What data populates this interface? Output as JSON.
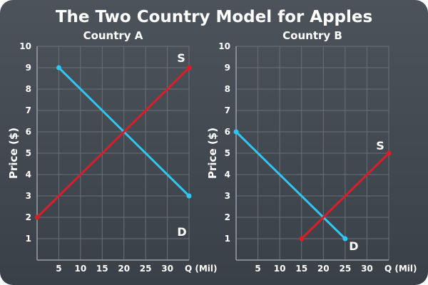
{
  "title": "The Two Country Model for Apples",
  "colors": {
    "demand": "#30c6f2",
    "supply": "#d91e2a",
    "background": "#3f454c",
    "text": "#ffffff"
  },
  "chart_data": [
    {
      "type": "line",
      "title": "Country A",
      "xlabel": "Q (Mil)",
      "ylabel": "Price ($)",
      "xlim": [
        0,
        35
      ],
      "ylim": [
        0,
        10
      ],
      "x_ticks": [
        "5",
        "10",
        "15",
        "20",
        "25",
        "30"
      ],
      "y_ticks": [
        "1",
        "2",
        "3",
        "4",
        "5",
        "6",
        "7",
        "8",
        "9",
        "10"
      ],
      "grid": true,
      "series": [
        {
          "name": "D",
          "role": "demand",
          "points": [
            [
              5,
              9
            ],
            [
              35,
              3
            ]
          ]
        },
        {
          "name": "S",
          "role": "supply",
          "points": [
            [
              0,
              2
            ],
            [
              35,
              9
            ]
          ]
        }
      ]
    },
    {
      "type": "line",
      "title": "Country B",
      "xlabel": "Q (Mil)",
      "ylabel": "Price ($)",
      "xlim": [
        0,
        35
      ],
      "ylim": [
        0,
        10
      ],
      "x_ticks": [
        "5",
        "10",
        "15",
        "20",
        "25",
        "30"
      ],
      "y_ticks": [
        "1",
        "2",
        "3",
        "4",
        "5",
        "6",
        "7",
        "8",
        "9",
        "10"
      ],
      "grid": true,
      "series": [
        {
          "name": "D",
          "role": "demand",
          "points": [
            [
              0,
              6
            ],
            [
              25,
              1
            ]
          ]
        },
        {
          "name": "S",
          "role": "supply",
          "points": [
            [
              15,
              1
            ],
            [
              35,
              5
            ]
          ]
        }
      ]
    }
  ]
}
